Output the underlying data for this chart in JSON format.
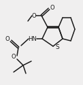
{
  "bg_color": "#f0efef",
  "line_color": "#1a1a1a",
  "lw": 1.1,
  "fs": 6.0,
  "figsize": [
    1.22,
    1.25
  ],
  "dpi": 100,
  "xlim": [
    0,
    122
  ],
  "ylim": [
    0,
    125
  ]
}
